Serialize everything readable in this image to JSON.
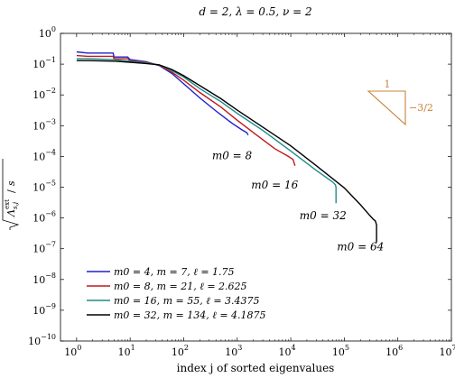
{
  "chart_data": {
    "type": "line",
    "title": "d = 2, λ = 0.5, ν = 2",
    "xlabel": "index j of sorted eigenvalues",
    "ylabel": "√(Λ_{s,j}^{ext} / s)",
    "x_scale": "log",
    "y_scale": "log",
    "xlim": [
      0.5,
      10000000
    ],
    "ylim": [
      1e-10,
      1
    ],
    "grid": false,
    "legend_position": "bottom-left",
    "x_ticks": [
      {
        "value": 1,
        "base": "10",
        "exp": "0"
      },
      {
        "value": 10,
        "base": "10",
        "exp": "1"
      },
      {
        "value": 100,
        "base": "10",
        "exp": "2"
      },
      {
        "value": 1000,
        "base": "10",
        "exp": "3"
      },
      {
        "value": 10000,
        "base": "10",
        "exp": "4"
      },
      {
        "value": 100000,
        "base": "10",
        "exp": "5"
      },
      {
        "value": 1000000,
        "base": "10",
        "exp": "6"
      },
      {
        "value": 10000000,
        "base": "10",
        "exp": "7"
      }
    ],
    "y_ticks": [
      {
        "value": 1,
        "base": "10",
        "exp": "0"
      },
      {
        "value": 0.1,
        "base": "10",
        "exp": "−1"
      },
      {
        "value": 0.01,
        "base": "10",
        "exp": "−2"
      },
      {
        "value": 0.001,
        "base": "10",
        "exp": "−3"
      },
      {
        "value": 0.0001,
        "base": "10",
        "exp": "−4"
      },
      {
        "value": 1e-05,
        "base": "10",
        "exp": "−5"
      },
      {
        "value": 1e-06,
        "base": "10",
        "exp": "−6"
      },
      {
        "value": 1e-07,
        "base": "10",
        "exp": "−7"
      },
      {
        "value": 1e-08,
        "base": "10",
        "exp": "−8"
      },
      {
        "value": 1e-09,
        "base": "10",
        "exp": "−9"
      },
      {
        "value": 1e-10,
        "base": "10",
        "exp": "−10"
      }
    ],
    "series": [
      {
        "name": "m0 = 4, m = 7, ℓ = 1.75",
        "color": "#1f1fd0",
        "x": [
          1,
          1.6,
          4.8,
          5,
          9,
          10,
          20,
          35,
          60,
          100,
          200,
          400,
          800,
          1200,
          1500,
          1600
        ],
        "y": [
          0.25,
          0.23,
          0.23,
          0.17,
          0.17,
          0.14,
          0.12,
          0.09,
          0.05,
          0.023,
          0.008,
          0.003,
          0.0012,
          0.00075,
          0.0006,
          0.0005
        ]
      },
      {
        "name": "m0 = 8, m = 21, ℓ = 2.625",
        "color": "#c0181c",
        "x": [
          1,
          1.6,
          4.8,
          5,
          9,
          10,
          20,
          35,
          60,
          100,
          200,
          500,
          1000,
          2000,
          5000,
          9000,
          11000,
          12000
        ],
        "y": [
          0.19,
          0.18,
          0.18,
          0.15,
          0.15,
          0.13,
          0.115,
          0.092,
          0.055,
          0.03,
          0.012,
          0.004,
          0.0015,
          0.0006,
          0.00018,
          0.0001,
          8e-05,
          5e-05
        ]
      },
      {
        "name": "m0 = 16, m = 55, ℓ = 3.4375",
        "color": "#1d8c8a",
        "x": [
          1,
          1.6,
          5,
          10,
          20,
          35,
          60,
          100,
          200,
          500,
          1000,
          3000,
          10000,
          30000,
          60000,
          68000,
          70000,
          70000
        ],
        "y": [
          0.15,
          0.15,
          0.14,
          0.125,
          0.11,
          0.095,
          0.062,
          0.038,
          0.016,
          0.006,
          0.0025,
          0.0007,
          0.00015,
          3.5e-05,
          1.5e-05,
          1.2e-05,
          1e-05,
          3e-06
        ]
      },
      {
        "name": "m0 = 32, m = 134, ℓ = 4.1875",
        "color": "#000000",
        "x": [
          1,
          1.6,
          5,
          10,
          20,
          35,
          60,
          100,
          200,
          500,
          1000,
          3000,
          10000,
          30000,
          100000,
          200000,
          300000,
          350000,
          380000,
          400000,
          400000
        ],
        "y": [
          0.13,
          0.13,
          0.125,
          0.115,
          0.105,
          0.095,
          0.067,
          0.042,
          0.02,
          0.0075,
          0.0032,
          0.0009,
          0.00022,
          5e-05,
          9.5e-06,
          2.7e-06,
          1.2e-06,
          9e-07,
          8e-07,
          6e-07,
          1.6e-07
        ]
      }
    ],
    "annotations": [
      {
        "text": "m0 = 8",
        "x": 800,
        "y": 8e-05
      },
      {
        "text": "m0 = 16",
        "x": 5000,
        "y": 9e-06
      },
      {
        "text": "m0 = 32",
        "x": 40000,
        "y": 9e-07
      },
      {
        "text": "m0 = 64",
        "x": 200000,
        "y": 9e-08
      }
    ],
    "slope_triangle": {
      "top_label": "1",
      "side_label": "−3/2",
      "color": "#c8803a"
    }
  }
}
